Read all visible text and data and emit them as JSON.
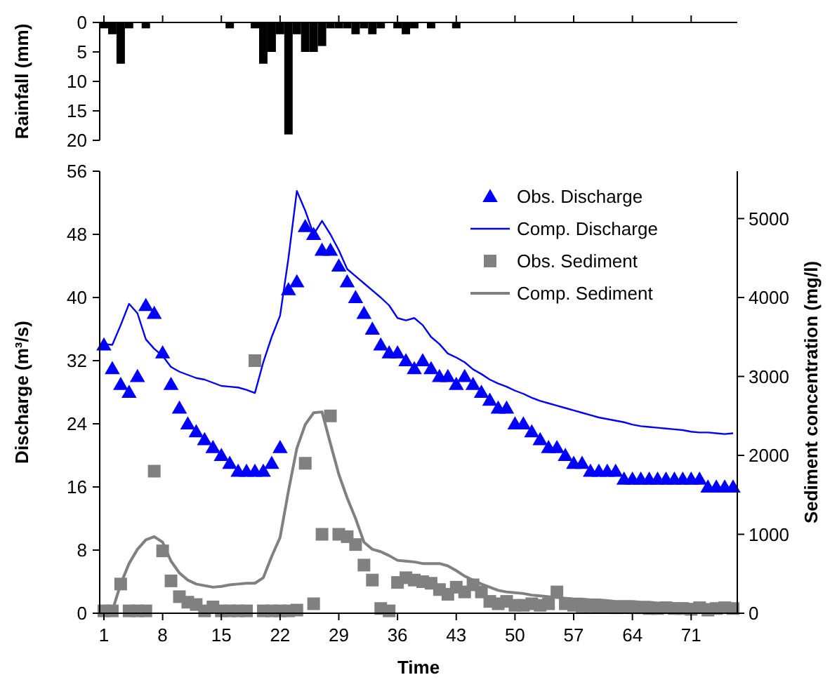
{
  "chart_data": [
    {
      "type": "bar",
      "ylabel": "Rainfall (mm)",
      "x": [
        1,
        2,
        3,
        4,
        5,
        6,
        7,
        8,
        9,
        10,
        11,
        12,
        13,
        14,
        15,
        16,
        17,
        18,
        19,
        20,
        21,
        22,
        23,
        24,
        25,
        26,
        27,
        28,
        29,
        30,
        31,
        32,
        33,
        34,
        35,
        36,
        37,
        38,
        39,
        40,
        41,
        42,
        43,
        44,
        45,
        46,
        47,
        48,
        49,
        50,
        51,
        52,
        53,
        54,
        55,
        56,
        57,
        58,
        59,
        60,
        61,
        62,
        63,
        64,
        65,
        66,
        67,
        68,
        69,
        70,
        71,
        72,
        73,
        74,
        75,
        76
      ],
      "values": [
        1,
        2,
        7,
        1,
        0,
        1,
        0,
        0,
        0,
        0,
        0,
        0,
        0,
        0,
        0,
        1,
        0,
        0,
        1,
        7,
        5,
        2,
        19,
        2,
        5,
        5,
        4,
        1,
        1,
        1,
        2,
        1,
        2,
        1,
        0,
        1,
        2,
        1,
        0,
        1,
        0,
        0,
        1,
        0,
        0,
        0,
        0,
        0,
        0,
        0,
        0,
        0,
        0,
        0,
        0,
        0,
        0,
        0,
        0,
        0,
        0,
        0,
        0,
        0,
        0,
        0,
        0,
        0,
        0,
        0,
        0,
        0,
        0,
        0,
        0,
        0
      ],
      "color": "#000000",
      "xlim": [
        0.5,
        76.5
      ],
      "xticks": [
        {
          "value": 1,
          "label": null
        },
        {
          "value": 8,
          "label": null
        },
        {
          "value": 15,
          "label": null
        },
        {
          "value": 22,
          "label": null
        },
        {
          "value": 29,
          "label": null
        },
        {
          "value": 36,
          "label": null
        },
        {
          "value": 43,
          "label": null
        },
        {
          "value": 50,
          "label": null
        },
        {
          "value": 57,
          "label": null
        },
        {
          "value": 64,
          "label": null
        },
        {
          "value": 71,
          "label": null
        }
      ],
      "ylim": [
        20,
        0
      ],
      "yticks": [
        0,
        5,
        10,
        15,
        20
      ],
      "tick_labels": "y"
    },
    {
      "type": "line",
      "xlabel": "Time",
      "ylabel": "Discharge (m³/s)",
      "y2label": "Sediment concentration (mg/l)",
      "legend": "top right",
      "x": [
        1,
        2,
        3,
        4,
        5,
        6,
        7,
        8,
        9,
        10,
        11,
        12,
        13,
        14,
        15,
        16,
        17,
        18,
        19,
        20,
        21,
        22,
        23,
        24,
        25,
        26,
        27,
        28,
        29,
        30,
        31,
        32,
        33,
        34,
        35,
        36,
        37,
        38,
        39,
        40,
        41,
        42,
        43,
        44,
        45,
        46,
        47,
        48,
        49,
        50,
        51,
        52,
        53,
        54,
        55,
        56,
        57,
        58,
        59,
        60,
        61,
        62,
        63,
        64,
        65,
        66,
        67,
        68,
        69,
        70,
        71,
        72,
        73,
        74,
        75,
        76
      ],
      "xlim": [
        0.5,
        76.5
      ],
      "xticks": [
        1,
        8,
        15,
        22,
        29,
        36,
        43,
        50,
        57,
        64,
        71
      ],
      "ylim": [
        0,
        56
      ],
      "yticks": [
        0,
        8,
        16,
        24,
        32,
        40,
        48,
        56
      ],
      "y2lim": [
        0,
        5600
      ],
      "y2ticks": [
        0,
        1000,
        2000,
        3000,
        4000,
        5000
      ],
      "series": [
        {
          "name": "Obs. Discharge",
          "type": "scatter",
          "marker": "triangle",
          "color": "#0000ff",
          "values": [
            34,
            31,
            29,
            28,
            30,
            39,
            38,
            33,
            29,
            26,
            24,
            23,
            22,
            21,
            20,
            19,
            18,
            18,
            18,
            18,
            19,
            21,
            41,
            42,
            49,
            48,
            46,
            46,
            44,
            42,
            40,
            38,
            36,
            34,
            33,
            33,
            32,
            31,
            32,
            31,
            30,
            30,
            29,
            30,
            29,
            28,
            27,
            26,
            26,
            24,
            24,
            23,
            22,
            21,
            21,
            20,
            19,
            19,
            18,
            18,
            18,
            18,
            17,
            17,
            17,
            17,
            17,
            17,
            17,
            17,
            17,
            17,
            16,
            16,
            16,
            16
          ]
        },
        {
          "name": "Comp. Discharge",
          "type": "line",
          "color": "#0000ff",
          "values": [
            34.1,
            34,
            36.5,
            39.2,
            38,
            34.7,
            33.5,
            32.6,
            31.2,
            30.6,
            30.2,
            29.8,
            29.6,
            29.2,
            28.8,
            28.7,
            28.6,
            28.3,
            27.9,
            31.8,
            35,
            37.7,
            45,
            53.5,
            51,
            48,
            49.7,
            48,
            46,
            43.6,
            42.7,
            41.8,
            40.9,
            40,
            39,
            37.4,
            37.1,
            37.4,
            36.5,
            35,
            34.1,
            32.9,
            32.4,
            31.8,
            30.9,
            30.3,
            29.6,
            29.1,
            28.7,
            28.2,
            27.8,
            27.3,
            26.9,
            26.6,
            26.3,
            26,
            25.7,
            25.4,
            25.1,
            24.8,
            24.6,
            24.4,
            24.2,
            23.9,
            23.7,
            23.6,
            23.5,
            23.4,
            23.3,
            23.2,
            23,
            22.9,
            22.9,
            22.8,
            22.7,
            22.8
          ]
        },
        {
          "name": "Obs. Sediment",
          "type": "scatter",
          "marker": "square",
          "axis": "y2",
          "color": "#808080",
          "values": [
            30,
            30,
            370,
            30,
            30,
            30,
            1800,
            790,
            410,
            210,
            140,
            110,
            30,
            80,
            30,
            30,
            30,
            30,
            3200,
            30,
            30,
            30,
            30,
            40,
            1900,
            120,
            1000,
            2500,
            1000,
            970,
            870,
            610,
            420,
            60,
            30,
            390,
            450,
            420,
            400,
            380,
            300,
            240,
            330,
            270,
            360,
            270,
            150,
            120,
            150,
            100,
            100,
            120,
            100,
            120,
            270,
            120,
            100,
            90,
            90,
            80,
            80,
            70,
            80,
            70,
            70,
            60,
            60,
            70,
            60,
            60,
            50,
            70,
            40,
            60,
            70,
            60
          ]
        },
        {
          "name": "Comp. Sediment",
          "type": "line",
          "axis": "y2",
          "color": "#808080",
          "values": [
            0,
            30,
            370,
            630,
            810,
            930,
            970,
            900,
            660,
            510,
            420,
            370,
            350,
            330,
            340,
            360,
            370,
            380,
            380,
            450,
            720,
            960,
            1550,
            2090,
            2390,
            2540,
            2550,
            2150,
            1760,
            1460,
            1200,
            900,
            810,
            780,
            730,
            670,
            660,
            650,
            630,
            630,
            630,
            600,
            540,
            470,
            420,
            370,
            330,
            290,
            270,
            260,
            250,
            230,
            220,
            210,
            200,
            190,
            180,
            180,
            170,
            170,
            160,
            150,
            150,
            150,
            140,
            140,
            130,
            130,
            120,
            120,
            110,
            110,
            110,
            110,
            100,
            100
          ]
        }
      ]
    }
  ]
}
